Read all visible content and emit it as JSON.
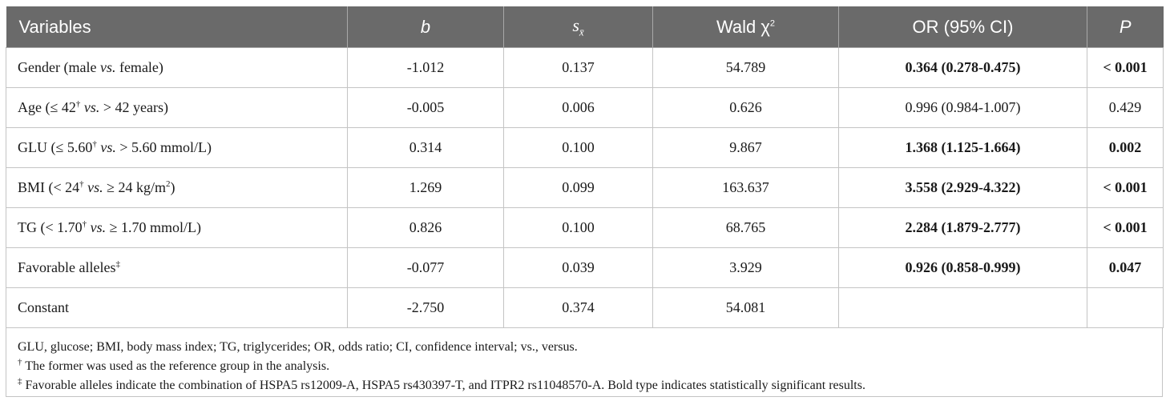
{
  "header": {
    "col1": "Variables",
    "col2": "b",
    "col3_main": "s",
    "col3_sub": "x̄",
    "col4_main": "Wald χ",
    "col4_sup": "2",
    "col5": "OR (95% CI)",
    "col6": "P"
  },
  "rows": [
    {
      "var_a": "Gender (male ",
      "var_vs": "vs.",
      "var_b": " female)",
      "b": "-1.012",
      "s": "0.137",
      "wald": "54.789",
      "or": "0.364 (0.278-0.475)",
      "p": "< 0.001"
    },
    {
      "var_a": "Age (≤ 42",
      "var_sup": "†",
      "var_vs": " vs.",
      "var_b": " > 42 years)",
      "b": "-0.005",
      "s": "0.006",
      "wald": "0.626",
      "or": "0.996 (0.984-1.007)",
      "p": "0.429"
    },
    {
      "var_a": "GLU (≤ 5.60",
      "var_sup": "†",
      "var_vs": " vs.",
      "var_b": " > 5.60 mmol/L)",
      "b": "0.314",
      "s": "0.100",
      "wald": "9.867",
      "or": "1.368 (1.125-1.664)",
      "p": "0.002"
    },
    {
      "var_a": "BMI (< 24",
      "var_sup": "†",
      "var_vs": " vs.",
      "var_b": " ≥ 24 kg/m",
      "var_sup2": "2",
      "var_c": ")",
      "b": "1.269",
      "s": "0.099",
      "wald": "163.637",
      "or": "3.558 (2.929-4.322)",
      "p": "< 0.001"
    },
    {
      "var_a": "TG (< 1.70",
      "var_sup": "†",
      "var_vs": " vs.",
      "var_b": " ≥ 1.70 mmol/L)",
      "b": "0.826",
      "s": "0.100",
      "wald": "68.765",
      "or": "2.284 (1.879-2.777)",
      "p": "< 0.001"
    },
    {
      "var_a": "Favorable alleles",
      "var_sup": "‡",
      "b": "-0.077",
      "s": "0.039",
      "wald": "3.929",
      "or": "0.926 (0.858-0.999)",
      "p": "0.047"
    },
    {
      "var_a": "Constant",
      "b": "-2.750",
      "s": "0.374",
      "wald": "54.081",
      "or": "",
      "p": ""
    }
  ],
  "footnotes": {
    "line1": "GLU, glucose; BMI, body mass index; TG, triglycerides; OR, odds ratio; CI, confidence interval; vs., versus.",
    "line2_mark": "†",
    "line2": " The former was used as the reference group in the analysis.",
    "line3_mark": "‡",
    "line3": " Favorable alleles indicate the combination of HSPA5 rs12009-A, HSPA5 rs430397-T, and ITPR2 rs11048570-A. Bold type indicates statistically significant results."
  }
}
